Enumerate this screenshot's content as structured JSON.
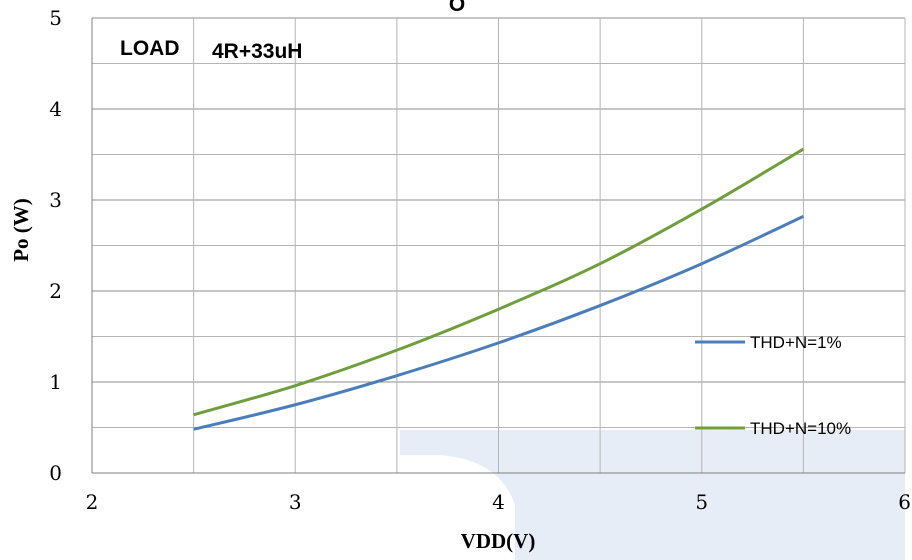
{
  "chart_data": {
    "type": "line",
    "title": "O",
    "xlabel": "VDD(V)",
    "ylabel": "Po (W)",
    "xlim": [
      2,
      6
    ],
    "ylim": [
      0,
      5
    ],
    "x_ticks": [
      2,
      3,
      4,
      5,
      6
    ],
    "y_ticks": [
      0,
      1,
      2,
      3,
      4,
      5
    ],
    "grid": true,
    "legend_position": "right",
    "annotations": {
      "load_label": "LOAD",
      "load_value": "4R+33uH"
    },
    "series": [
      {
        "name": "THD+N=1%",
        "color": "#4a7ebb",
        "x": [
          2.5,
          3.0,
          3.5,
          4.0,
          4.5,
          5.0,
          5.5
        ],
        "values": [
          0.48,
          0.75,
          1.07,
          1.43,
          1.84,
          2.3,
          2.82
        ]
      },
      {
        "name": "THD+N=10%",
        "color": "#6e9f3a",
        "x": [
          2.5,
          3.0,
          3.5,
          4.0,
          4.5,
          5.0,
          5.5
        ],
        "values": [
          0.64,
          0.96,
          1.35,
          1.8,
          2.3,
          2.9,
          3.56
        ]
      }
    ],
    "watermark_color": "#e6edf7"
  }
}
